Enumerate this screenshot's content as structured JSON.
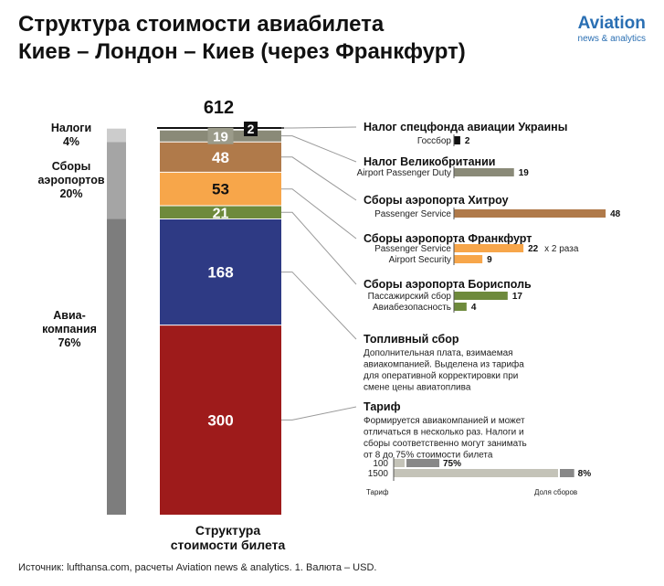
{
  "title": {
    "line1": "Структура стоимости авиабилета",
    "line2": "Киев – Лондон – Киев (через Франкфурт)"
  },
  "logo": {
    "name": "Aviation",
    "subtitle": "news & analytics"
  },
  "source": "Источник: lufthansa.com, расчеты Aviation news & analytics. 1. Валюта – USD.",
  "colors": {
    "ukraine_tax": "#111111",
    "uk_tax": "#8a8a78",
    "heathrow": "#b07a4a",
    "frankfurt": "#f7a64a",
    "borispol": "#6e8a3c",
    "fuel": "#2e3a84",
    "tariff": "#9e1b1b",
    "group_taxes": "#cccccc",
    "group_airports": "#a5a5a5",
    "group_airline": "#7d7d7d"
  },
  "chart_data": {
    "type": "bar",
    "stacked": true,
    "total": 612,
    "total_label": "612",
    "xlabel": "Структура стоимости билета",
    "segments": [
      {
        "key": "tariff",
        "name": "Тариф",
        "value": 300,
        "label": "300"
      },
      {
        "key": "fuel",
        "name": "Топливный сбор",
        "value": 168,
        "label": "168"
      },
      {
        "key": "borispol",
        "name": "Сборы аэропорта Борисполь",
        "value": 21,
        "label": "21"
      },
      {
        "key": "frankfurt",
        "name": "Сборы аэропорта Франкфурт",
        "value": 53,
        "label": "53"
      },
      {
        "key": "heathrow",
        "name": "Сборы аэропорта Хитроу",
        "value": 48,
        "label": "48"
      },
      {
        "key": "uk_tax",
        "name": "Налог Великобритании",
        "value": 19,
        "label": "19"
      },
      {
        "key": "ukraine_tax",
        "name": "Налог спецфонда авиации Украины",
        "value": 2,
        "label": "2"
      }
    ],
    "groups": [
      {
        "key": "group_airline",
        "label1": "Авиа-",
        "label2": "компания",
        "label3": "76%",
        "value": 468,
        "percent": 76
      },
      {
        "key": "group_airports",
        "label1": "Сборы",
        "label2": "аэропортов",
        "label3": "20%",
        "value": 122,
        "percent": 20
      },
      {
        "key": "group_taxes",
        "label1": "Налоги",
        "label2": "4%",
        "label3": "",
        "value": 21,
        "percent": 4
      }
    ],
    "details": [
      {
        "key": "ukraine_tax",
        "title": "Налог спецфонда авиации Украины",
        "items": [
          {
            "name": "Госсбор",
            "value": 2,
            "label": "2"
          }
        ]
      },
      {
        "key": "uk_tax",
        "title": "Налог Великобритании",
        "items": [
          {
            "name": "Airport Passenger Duty",
            "value": 19,
            "label": "19"
          }
        ]
      },
      {
        "key": "heathrow",
        "title": "Сборы аэропорта Хитроу",
        "items": [
          {
            "name": "Passenger Service",
            "value": 48,
            "label": "48"
          }
        ]
      },
      {
        "key": "frankfurt",
        "title": "Сборы аэропорта Франкфурт",
        "items": [
          {
            "name": "Passenger Service",
            "value": 22,
            "label": "22",
            "note": "x 2 раза"
          },
          {
            "name": "Airport Security",
            "value": 9,
            "label": "9"
          }
        ]
      },
      {
        "key": "borispol",
        "title": "Сборы аэропорта Борисполь",
        "items": [
          {
            "name": "Пассажирский сбор",
            "value": 17,
            "label": "17"
          },
          {
            "name": "Авиабезопасность",
            "value": 4,
            "label": "4"
          }
        ]
      },
      {
        "key": "fuel",
        "title": "Топливный сбор",
        "desc": [
          "Дополнительная плата, взимаемая",
          "авиакомпанией. Выделена из тарифа",
          "для оперативной корректировки при",
          "смене цены авиатоплива"
        ]
      },
      {
        "key": "tariff",
        "title": "Тариф",
        "desc": [
          "Формируется авиакомпанией и может",
          "отличаться в несколько раз. Налоги и",
          "сборы соответственно могут занимать",
          "от 8 до 75% стоимости билета"
        ]
      }
    ],
    "inset": {
      "xlabel_left": "Тариф",
      "xlabel_right": "Доля сборов",
      "rows": [
        {
          "tariff_label": "100",
          "tariff": 100,
          "fees_percent": 75,
          "fees_label": "75%"
        },
        {
          "tariff_label": "1500",
          "tariff": 1500,
          "fees_percent": 8,
          "fees_label": "8%"
        }
      ]
    }
  }
}
